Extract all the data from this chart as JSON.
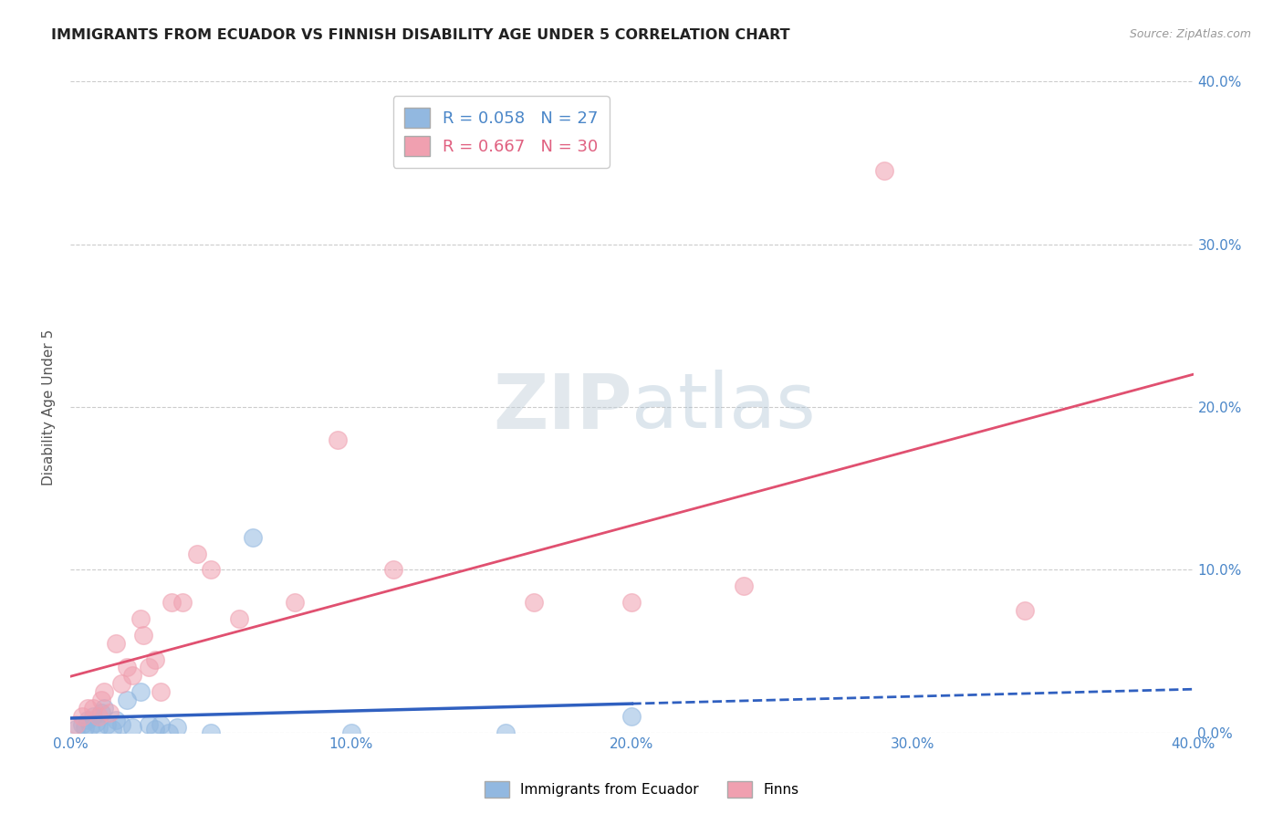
{
  "title": "IMMIGRANTS FROM ECUADOR VS FINNISH DISABILITY AGE UNDER 5 CORRELATION CHART",
  "source": "Source: ZipAtlas.com",
  "ylabel": "Disability Age Under 5",
  "x_tick_labels": [
    "0.0%",
    "10.0%",
    "20.0%",
    "30.0%",
    "40.0%"
  ],
  "y_tick_labels_right": [
    "0.0%",
    "10.0%",
    "20.0%",
    "30.0%",
    "40.0%"
  ],
  "xlim": [
    0.0,
    0.4
  ],
  "ylim": [
    0.0,
    0.4
  ],
  "r_ecuador": 0.058,
  "n_ecuador": 27,
  "r_finns": 0.667,
  "n_finns": 30,
  "color_ecuador": "#92b8e0",
  "color_finns": "#f0a0b0",
  "trendline_ecuador_solid": "#3060c0",
  "trendline_ecuador_dashed": "#3060c0",
  "trendline_finns": "#e05070",
  "background": "#ffffff",
  "ecuador_x": [
    0.002,
    0.004,
    0.005,
    0.006,
    0.007,
    0.008,
    0.009,
    0.01,
    0.011,
    0.012,
    0.013,
    0.015,
    0.016,
    0.018,
    0.02,
    0.022,
    0.025,
    0.028,
    0.03,
    0.032,
    0.035,
    0.038,
    0.05,
    0.065,
    0.1,
    0.155,
    0.2
  ],
  "ecuador_y": [
    0.002,
    0.005,
    0.003,
    0.008,
    0.004,
    0.01,
    0.006,
    0.003,
    0.012,
    0.015,
    0.005,
    0.002,
    0.008,
    0.005,
    0.02,
    0.003,
    0.025,
    0.005,
    0.002,
    0.005,
    0.0,
    0.003,
    0.0,
    0.12,
    0.0,
    0.0,
    0.01
  ],
  "finns_x": [
    0.002,
    0.004,
    0.006,
    0.008,
    0.01,
    0.011,
    0.012,
    0.014,
    0.016,
    0.018,
    0.02,
    0.022,
    0.025,
    0.026,
    0.028,
    0.03,
    0.032,
    0.036,
    0.04,
    0.045,
    0.05,
    0.06,
    0.08,
    0.095,
    0.115,
    0.165,
    0.2,
    0.24,
    0.29,
    0.34
  ],
  "finns_y": [
    0.005,
    0.01,
    0.015,
    0.015,
    0.01,
    0.02,
    0.025,
    0.012,
    0.055,
    0.03,
    0.04,
    0.035,
    0.07,
    0.06,
    0.04,
    0.045,
    0.025,
    0.08,
    0.08,
    0.11,
    0.1,
    0.07,
    0.08,
    0.18,
    0.1,
    0.08,
    0.08,
    0.09,
    0.345,
    0.075
  ],
  "watermark_zip_color": "#c8d8e8",
  "watermark_atlas_color": "#a0b8d0"
}
